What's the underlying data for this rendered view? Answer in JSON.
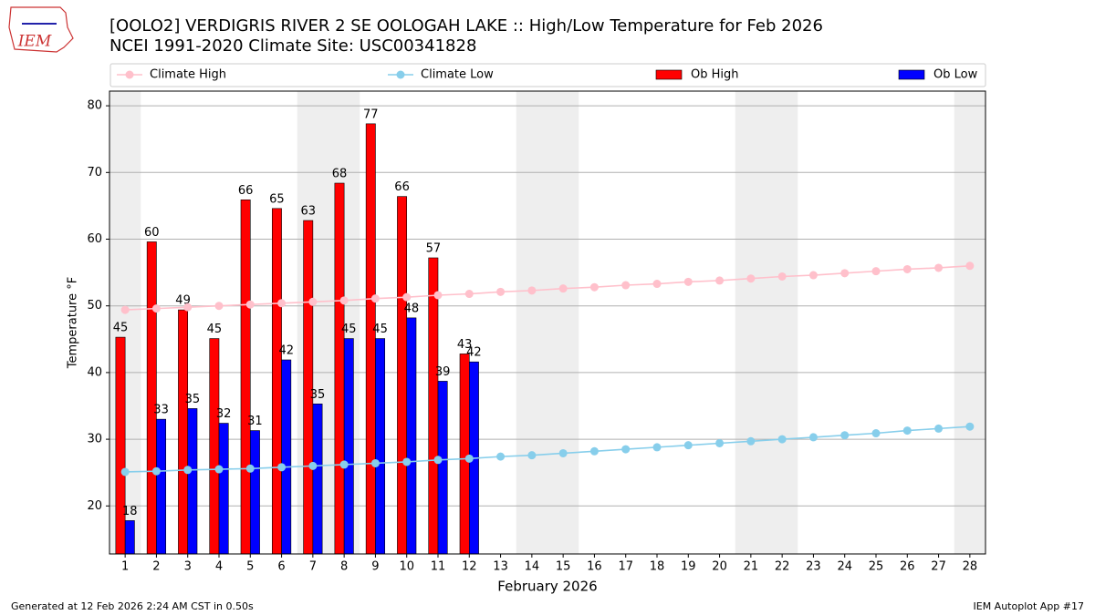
{
  "logo_text": "IEM",
  "footer_left": "Generated at 12 Feb 2026 2:24 AM CST in 0.50s",
  "footer_right": "IEM Autoplot App #17",
  "chart_data": {
    "type": "bar",
    "title": "[OOLO2] VERDIGRIS RIVER 2 SE OOLOGAH LAKE :: High/Low Temperature for Feb 2026",
    "subtitle": "NCEI 1991-2020 Climate Site: USC00341828",
    "x_label": "February 2026",
    "y_label": "Temperature °F",
    "x": [
      1,
      2,
      3,
      4,
      5,
      6,
      7,
      8,
      9,
      10,
      11,
      12,
      13,
      14,
      15,
      16,
      17,
      18,
      19,
      20,
      21,
      22,
      23,
      24,
      25,
      26,
      27,
      28
    ],
    "xlim": [
      0.5,
      28.5
    ],
    "xticks": [
      1,
      2,
      3,
      4,
      5,
      6,
      7,
      8,
      9,
      10,
      11,
      12,
      13,
      14,
      15,
      16,
      17,
      18,
      19,
      20,
      21,
      22,
      23,
      24,
      25,
      26,
      27,
      28
    ],
    "ylim": [
      12.8,
      82.2
    ],
    "yticks": [
      20,
      30,
      40,
      50,
      60,
      70,
      80
    ],
    "grid": true,
    "legend": "top",
    "shaded_days": [
      1,
      7,
      8,
      14,
      15,
      21,
      22,
      28
    ],
    "series": [
      {
        "name": "Climate High",
        "type": "line",
        "color": "#ffc0cb",
        "values": [
          49.4,
          49.6,
          49.8,
          50.0,
          50.2,
          50.4,
          50.6,
          50.8,
          51.1,
          51.3,
          51.6,
          51.8,
          52.1,
          52.3,
          52.6,
          52.8,
          53.1,
          53.3,
          53.6,
          53.8,
          54.1,
          54.4,
          54.6,
          54.9,
          55.2,
          55.5,
          55.7,
          56.0
        ]
      },
      {
        "name": "Climate Low",
        "type": "line",
        "color": "#87ceeb",
        "values": [
          25.1,
          25.2,
          25.4,
          25.5,
          25.6,
          25.8,
          26.0,
          26.2,
          26.4,
          26.6,
          26.9,
          27.1,
          27.4,
          27.6,
          27.9,
          28.2,
          28.5,
          28.8,
          29.1,
          29.4,
          29.7,
          30.0,
          30.3,
          30.6,
          30.9,
          31.3,
          31.6,
          31.9
        ]
      },
      {
        "name": "Ob High",
        "type": "bar",
        "color": "#ff0000",
        "values": [
          45.3,
          59.6,
          49.4,
          45.1,
          65.9,
          64.6,
          62.8,
          68.4,
          77.3,
          66.4,
          57.2,
          42.8,
          null,
          null,
          null,
          null,
          null,
          null,
          null,
          null,
          null,
          null,
          null,
          null,
          null,
          null,
          null,
          null
        ],
        "value_labels": [
          "45",
          "60",
          "49",
          "45",
          "66",
          "65",
          "63",
          "68",
          "77",
          "66",
          "57",
          "43",
          null,
          null,
          null,
          null,
          null,
          null,
          null,
          null,
          null,
          null,
          null,
          null,
          null,
          null,
          null,
          null
        ]
      },
      {
        "name": "Ob Low",
        "type": "bar",
        "color": "#0000ff",
        "values": [
          17.8,
          33.0,
          34.6,
          32.4,
          31.3,
          41.9,
          35.3,
          45.1,
          45.1,
          48.2,
          38.7,
          41.6,
          null,
          null,
          null,
          null,
          null,
          null,
          null,
          null,
          null,
          null,
          null,
          null,
          null,
          null,
          null,
          null
        ],
        "value_labels": [
          "18",
          "33",
          "35",
          "32",
          "31",
          "42",
          "35",
          "45",
          "45",
          "48",
          "39",
          "42",
          null,
          null,
          null,
          null,
          null,
          null,
          null,
          null,
          null,
          null,
          null,
          null,
          null,
          null,
          null,
          null
        ]
      }
    ]
  }
}
